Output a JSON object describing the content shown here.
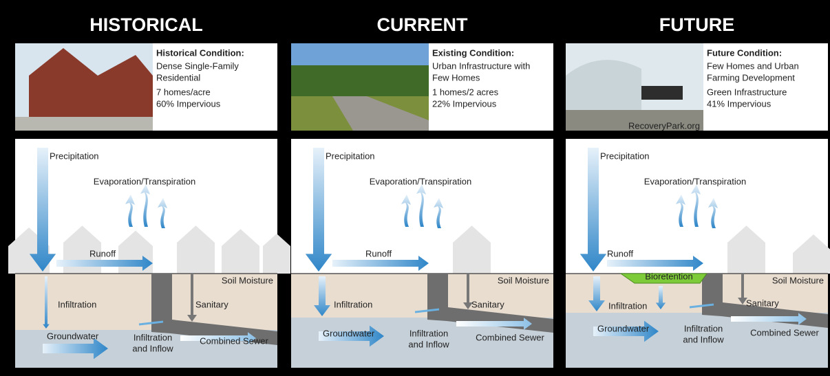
{
  "panels": [
    {
      "heading": "HISTORICAL",
      "condition_title": "Historical Condition:",
      "description": [
        [
          "Dense Single-Family",
          "Residential"
        ],
        [
          "7 homes/acre",
          "60% Impervious"
        ]
      ],
      "labels": {
        "precipitation": "Precipitation",
        "evaporation": "Evaporation/Transpiration",
        "runoff": "Runoff",
        "soil_moisture": "Soil Moisture",
        "infiltration": "Infiltration",
        "sanitary": "Sanitary",
        "groundwater": "Groundwater",
        "infiltration_inflow": [
          "Infiltration",
          "and Inflow"
        ],
        "combined_sewer": "Combined Sewer"
      }
    },
    {
      "heading": "CURRENT",
      "condition_title": "Existing Condition:",
      "description": [
        [
          "Urban Infrastructure with",
          "Few Homes"
        ],
        [
          "1 homes/2 acres",
          "22% Impervious"
        ]
      ],
      "labels": {
        "precipitation": "Precipitation",
        "evaporation": "Evaporation/Transpiration",
        "runoff": "Runoff",
        "soil_moisture": "Soil Moisture",
        "infiltration": "Infiltration",
        "sanitary": "Sanitary",
        "groundwater": "Groundwater",
        "infiltration_inflow": [
          "Infiltration",
          "and Inflow"
        ],
        "combined_sewer": "Combined Sewer"
      }
    },
    {
      "heading": "FUTURE",
      "condition_title": "Future Condition:",
      "description": [
        [
          "Few Homes and Urban",
          "Farming Development"
        ],
        [
          "Green Infrastructure",
          "41% Impervious"
        ]
      ],
      "photo_credit": "RecoveryPark.org",
      "labels": {
        "precipitation": "Precipitation",
        "evaporation": "Evaporation/Transpiration",
        "runoff": "Runoff",
        "bioretention": "Bioretention",
        "soil_moisture": "Soil Moisture",
        "infiltration": "Infiltration",
        "sanitary": "Sanitary",
        "groundwater": "Groundwater",
        "infiltration_inflow": [
          "Infiltration",
          "and Inflow"
        ],
        "combined_sewer": "Combined Sewer"
      }
    }
  ]
}
